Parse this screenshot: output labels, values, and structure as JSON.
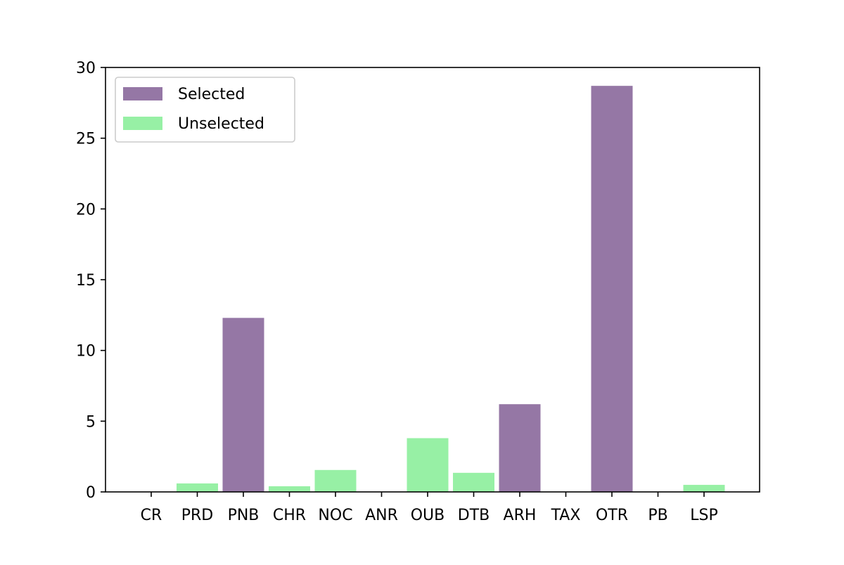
{
  "chart_data": {
    "type": "bar",
    "title": "",
    "xlabel": "",
    "ylabel": "",
    "categories": [
      "CR",
      "PRD",
      "PNB",
      "CHR",
      "NOC",
      "ANR",
      "OUB",
      "DTB",
      "ARH",
      "TAX",
      "OTR",
      "PB",
      "LSP"
    ],
    "series": [
      {
        "name": "Selected",
        "color": "#9577a5",
        "values": [
          0,
          0,
          12.3,
          0,
          0,
          0,
          0,
          0,
          6.2,
          0,
          28.7,
          0,
          0
        ]
      },
      {
        "name": "Unselected",
        "color": "#97f0a5",
        "values": [
          0,
          0.6,
          0,
          0.4,
          1.55,
          0,
          3.8,
          1.35,
          0,
          0,
          0,
          0,
          0.5
        ]
      }
    ],
    "ylim": [
      0,
      30
    ],
    "yticks": [
      "0",
      "5",
      "10",
      "15",
      "20",
      "25",
      "30"
    ],
    "legend": "top-left",
    "grid": false
  }
}
